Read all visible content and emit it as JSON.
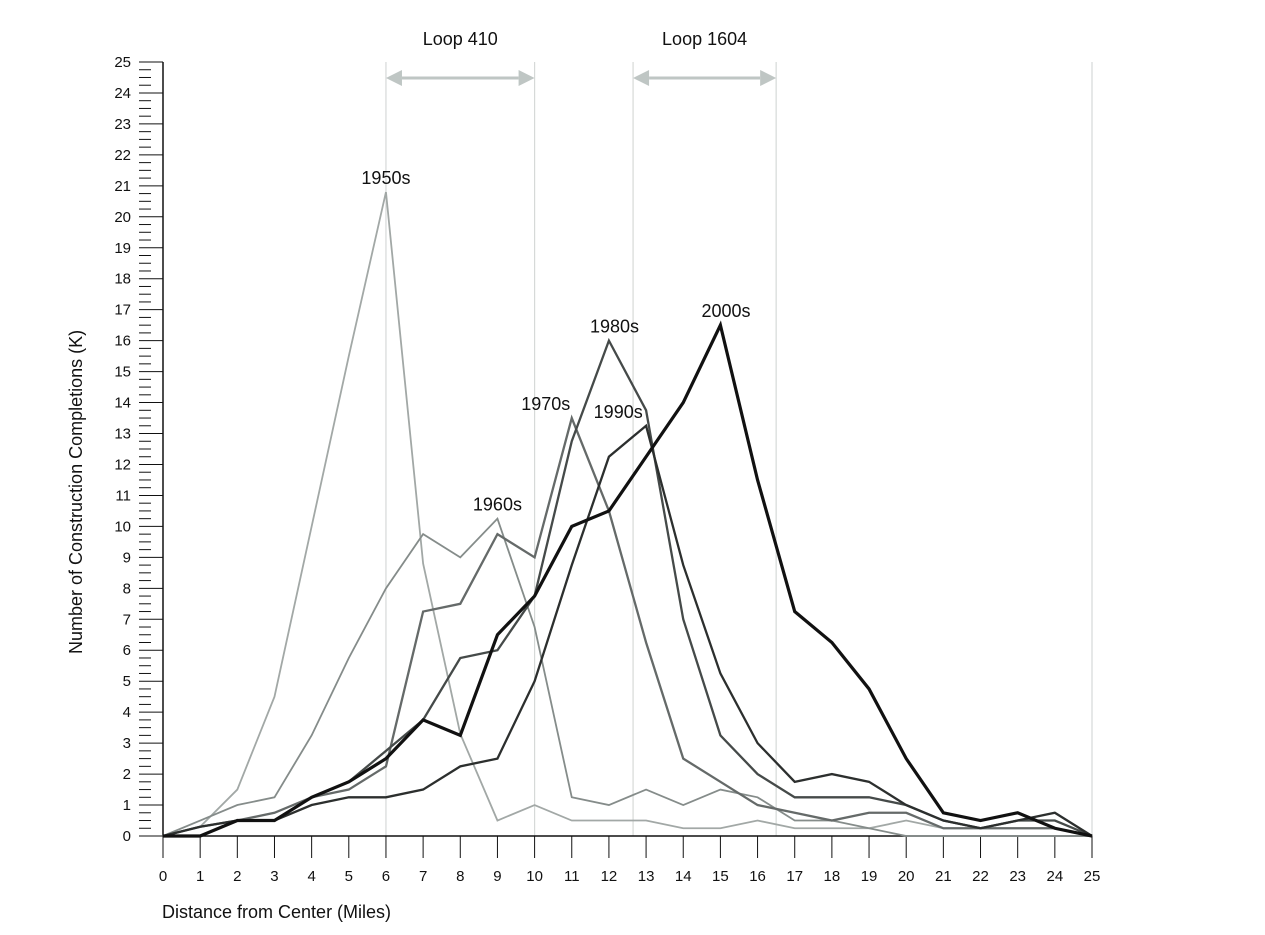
{
  "chart_data": {
    "type": "line",
    "title": "",
    "xlabel": "Distance from Center (Miles)",
    "ylabel": "Number of Construction Completions (K)",
    "xlim": [
      0,
      25
    ],
    "ylim": [
      0,
      25
    ],
    "x": [
      0,
      1,
      2,
      3,
      4,
      5,
      6,
      7,
      8,
      9,
      10,
      11,
      12,
      13,
      14,
      15,
      16,
      17,
      18,
      19,
      20,
      21,
      22,
      23,
      24,
      25
    ],
    "x_ticks": [
      "0",
      "1",
      "2",
      "3",
      "4",
      "5",
      "6",
      "7",
      "8",
      "9",
      "10",
      "11",
      "12",
      "13",
      "14",
      "15",
      "16",
      "17",
      "18",
      "19",
      "20",
      "21",
      "22",
      "23",
      "24",
      "25"
    ],
    "y_ticks": [
      "0",
      "1",
      "2",
      "3",
      "4",
      "5",
      "6",
      "7",
      "8",
      "9",
      "10",
      "11",
      "12",
      "13",
      "14",
      "15",
      "16",
      "17",
      "18",
      "19",
      "20",
      "21",
      "22",
      "23",
      "24",
      "25"
    ],
    "grid": false,
    "legend": "none (series labeled inline)",
    "series": [
      {
        "name": "1950s",
        "color": "#a2a8a6",
        "line_weight": "thin",
        "values": [
          0,
          0.3,
          1.5,
          4.5,
          10,
          15.5,
          20.8,
          8.8,
          3.3,
          0.5,
          1.0,
          0.5,
          0.5,
          0.5,
          0.25,
          0.25,
          0.5,
          0.25,
          0.25,
          0.25,
          0.5,
          0.25,
          0.25,
          0.25,
          0.25,
          0
        ]
      },
      {
        "name": "1960s",
        "color": "#858c8a",
        "line_weight": "thin",
        "values": [
          0,
          0.5,
          1.0,
          1.25,
          3.25,
          5.75,
          8.0,
          9.75,
          9.0,
          10.25,
          6.75,
          1.25,
          1.0,
          1.5,
          1.0,
          1.5,
          1.25,
          0.5,
          0.5,
          0.25,
          0,
          0,
          0,
          0,
          0,
          0
        ]
      },
      {
        "name": "1970s",
        "color": "#656a69",
        "line_weight": "medium",
        "values": [
          0,
          0.3,
          0.5,
          0.75,
          1.25,
          1.5,
          2.25,
          7.25,
          7.5,
          9.75,
          9.0,
          13.5,
          10.5,
          6.25,
          2.5,
          1.75,
          1.0,
          0.75,
          0.5,
          0.75,
          0.75,
          0.25,
          0.25,
          0.25,
          0.25,
          0
        ]
      },
      {
        "name": "1980s",
        "color": "#454a49",
        "line_weight": "medium",
        "values": [
          0,
          0,
          0.5,
          0.5,
          1.25,
          1.75,
          2.75,
          3.75,
          5.75,
          6.0,
          7.75,
          12.75,
          16.0,
          13.75,
          7.0,
          3.25,
          2.0,
          1.25,
          1.25,
          1.25,
          1.0,
          0.5,
          0.25,
          0.5,
          0.5,
          0
        ]
      },
      {
        "name": "1990s",
        "color": "#2c2f2e",
        "line_weight": "medium",
        "values": [
          0,
          0.3,
          0.5,
          0.5,
          1.0,
          1.25,
          1.25,
          1.5,
          2.25,
          2.5,
          5.0,
          8.75,
          12.25,
          13.25,
          8.75,
          5.25,
          3.0,
          1.75,
          2.0,
          1.75,
          1.0,
          0.5,
          0.25,
          0.5,
          0.75,
          0
        ]
      },
      {
        "name": "2000s",
        "color": "#111111",
        "line_weight": "thick",
        "values": [
          0,
          0,
          0.5,
          0.5,
          1.25,
          1.75,
          2.5,
          3.75,
          3.25,
          6.5,
          7.75,
          10.0,
          10.5,
          12.25,
          14.0,
          16.5,
          11.5,
          7.25,
          6.25,
          4.75,
          2.5,
          0.75,
          0.5,
          0.75,
          0.25,
          0
        ]
      }
    ],
    "series_label_anchors": {
      "1950s": [
        6,
        20.8
      ],
      "1960s": [
        9,
        10.25
      ],
      "1970s": [
        10.3,
        13.5
      ],
      "1980s": [
        12.15,
        16.0
      ],
      "1990s": [
        12.25,
        13.25
      ],
      "2000s": [
        15.15,
        16.5
      ]
    },
    "vertical_reference_lines": [
      6,
      10,
      12.65,
      16.5,
      25
    ],
    "regions": [
      {
        "label": "Loop 410",
        "from": 6,
        "to": 10,
        "color": "#bfc6c4"
      },
      {
        "label": "Loop 1604",
        "from": 12.65,
        "to": 16.5,
        "color": "#bfc6c4"
      }
    ]
  }
}
